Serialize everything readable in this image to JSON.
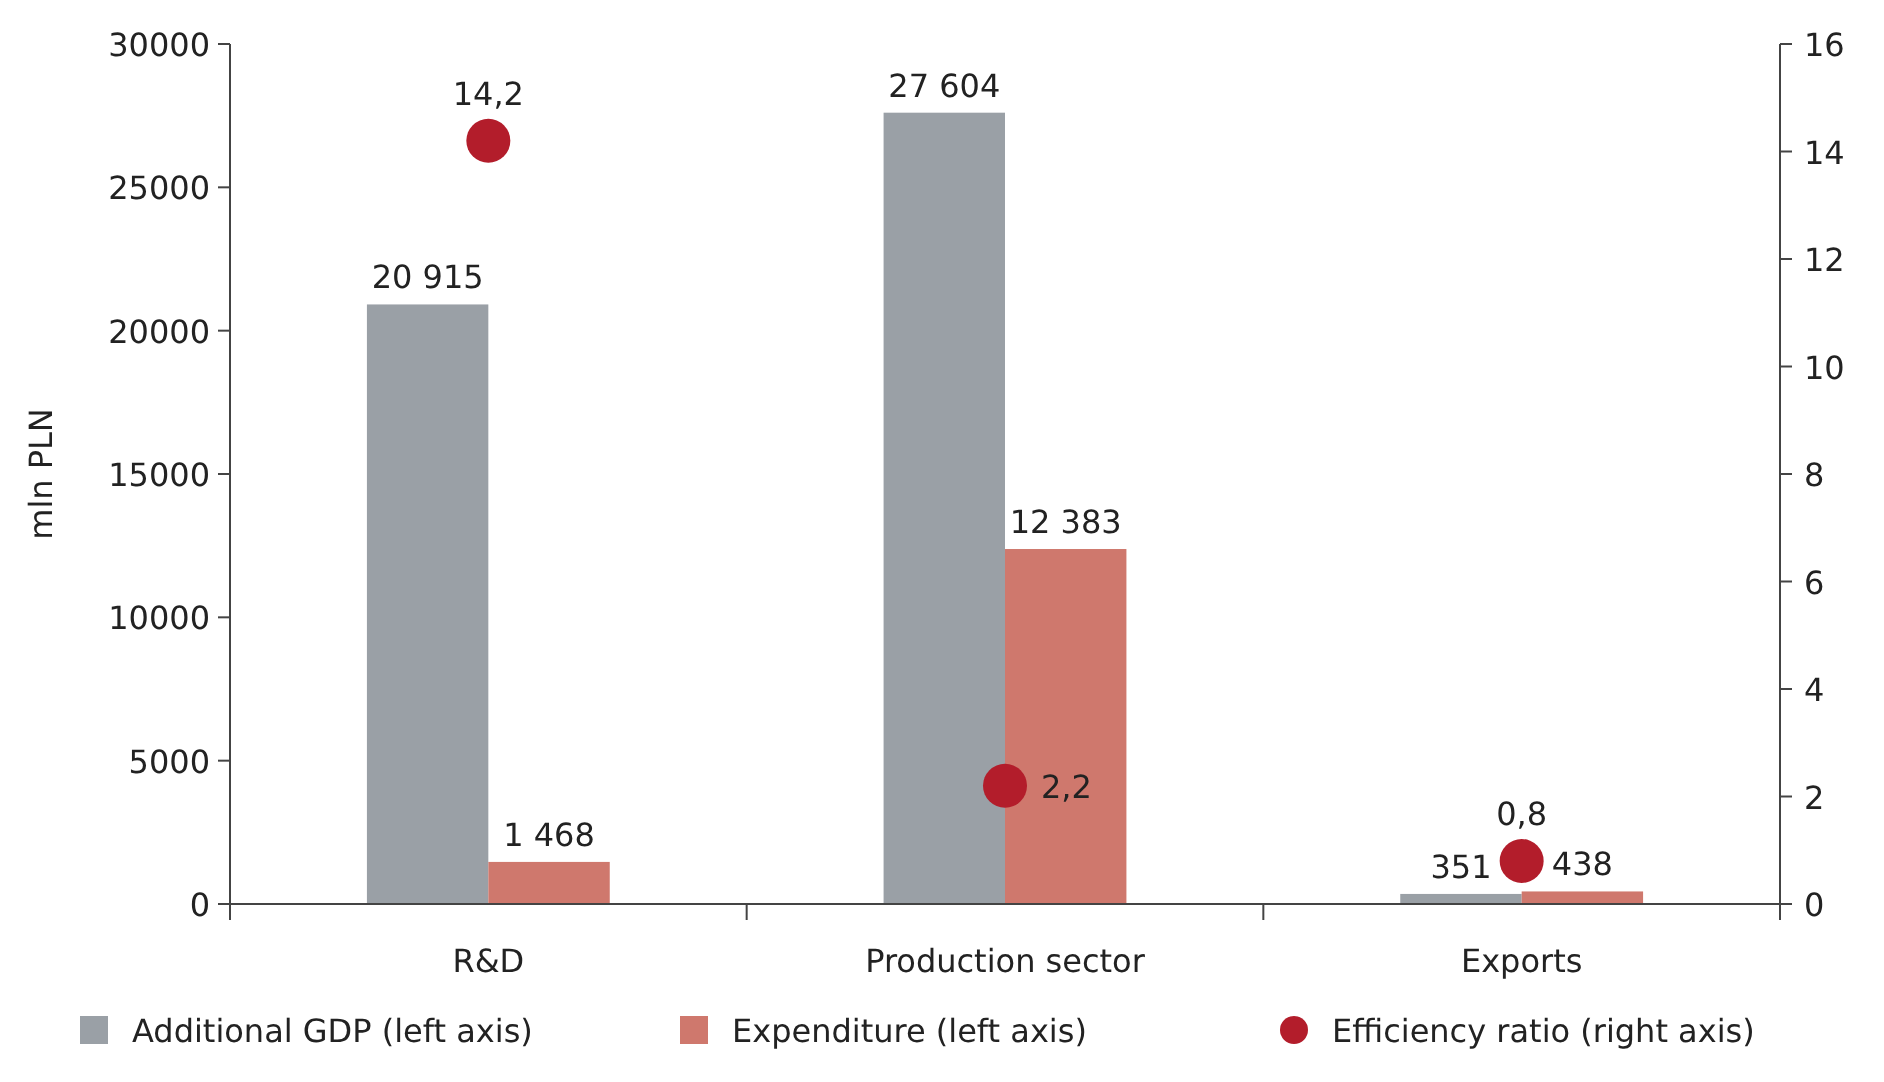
{
  "chart_data": {
    "type": "bar",
    "ylabel": "mln PLN",
    "categories": [
      "R&D",
      "Production sector",
      "Exports"
    ],
    "series": [
      {
        "name": "Additional GDP (left axis)",
        "color": "#9aa0a6",
        "values": [
          20915,
          27604,
          351
        ],
        "value_labels": [
          "20 915",
          "27 604",
          "351"
        ]
      },
      {
        "name": "Expenditure (left axis)",
        "color": "#cf786d",
        "values": [
          1468,
          12383,
          438
        ],
        "value_labels": [
          "1 468",
          "12 383",
          "438"
        ]
      },
      {
        "name": "Efficiency ratio (right axis)",
        "type": "scatter",
        "axis": "y2",
        "color": "#b31d2b",
        "x": [
          "R&D",
          "Production sector",
          "Exports"
        ],
        "values": [
          14.2,
          2.2,
          0.8
        ],
        "value_labels": [
          "14,2",
          "2,2",
          "0,8"
        ],
        "marker": "circle"
      }
    ],
    "ylim": [
      0,
      30000
    ],
    "yticks": [
      0,
      5000,
      10000,
      15000,
      20000,
      25000,
      30000
    ],
    "y2lim": [
      0,
      16
    ],
    "y2ticks": [
      0,
      2,
      4,
      6,
      8,
      10,
      12,
      14,
      16
    ],
    "grid": false,
    "legend": "bottom"
  }
}
